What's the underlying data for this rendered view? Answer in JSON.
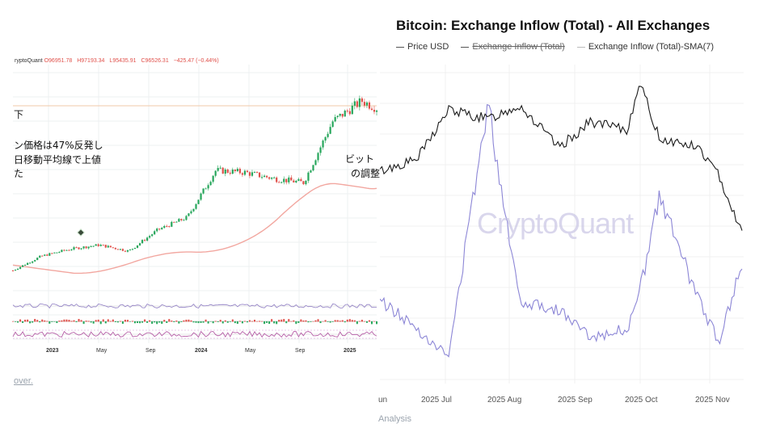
{
  "left_chart": {
    "ohlc": {
      "source": "ryptoQuant",
      "values": [
        "O96951.78",
        "H97193.34",
        "L95435.91",
        "C96526.31",
        "−425.47 (−0.44%)"
      ]
    },
    "annotations": [
      "下",
      "ン価格は47%反発し",
      "日移動平均線で上値",
      "た",
      "ビット",
      "の調整"
    ],
    "x_ticks": [
      {
        "label": "2023",
        "bold": true
      },
      {
        "label": "May",
        "bold": false
      },
      {
        "label": "Sep",
        "bold": false
      },
      {
        "label": "2024",
        "bold": true
      },
      {
        "label": "May",
        "bold": false
      },
      {
        "label": "Sep",
        "bold": false
      },
      {
        "label": "2025",
        "bold": true
      }
    ],
    "footer_fragment": "over."
  },
  "chart_data": [
    {
      "type": "line",
      "title": "",
      "xlabel": "",
      "ylabel": "",
      "x": [
        "2023-01",
        "2023-03",
        "2023-05",
        "2023-07",
        "2023-09",
        "2023-11",
        "2024-01",
        "2024-03",
        "2024-05",
        "2024-07",
        "2024-09",
        "2024-11",
        "2025-01",
        "2025-02"
      ],
      "series": [
        {
          "values": [
            17000,
            24000,
            27500,
            29500,
            26500,
            37000,
            43000,
            66000,
            65000,
            62000,
            60000,
            90000,
            100000,
            96500
          ]
        }
      ]
    },
    {
      "type": "line",
      "title": "Bitcoin: Exchange Inflow (Total) - All Exchanges",
      "xlabel": "",
      "ylabel": "",
      "x_ticks": [
        "un",
        "2025 Jul",
        "2025 Aug",
        "2025 Sep",
        "2025 Oct",
        "2025 Nov"
      ],
      "legend": [
        "Price USD",
        "Exchange Inflow (Total)",
        "Exchange Inflow (Total)-SMA(7)"
      ],
      "x": [
        "2025-06-15",
        "2025-07-01",
        "2025-07-15",
        "2025-08-01",
        "2025-08-15",
        "2025-09-01",
        "2025-09-15",
        "2025-10-01",
        "2025-10-06",
        "2025-10-15",
        "2025-11-01",
        "2025-11-10",
        "2025-11-20"
      ],
      "series": [
        {
          "name": "Price USD",
          "values": [
            105000,
            107500,
            118000,
            116000,
            119000,
            110000,
            115500,
            113500,
            124000,
            112000,
            110000,
            104000,
            92000
          ]
        },
        {
          "name": "Exchange Inflow (Total)-SMA(7)",
          "values": [
            36000,
            30000,
            24000,
            78000,
            36000,
            34000,
            28000,
            30000,
            37000,
            58000,
            36000,
            27000,
            44000
          ]
        }
      ]
    }
  ],
  "right_footer": "Analysis",
  "colors": {
    "price": "#1a1a1a",
    "inflow": "#8c86d6",
    "sma": "#f2a7a0",
    "up": "#26a65b",
    "down": "#e0504a"
  }
}
